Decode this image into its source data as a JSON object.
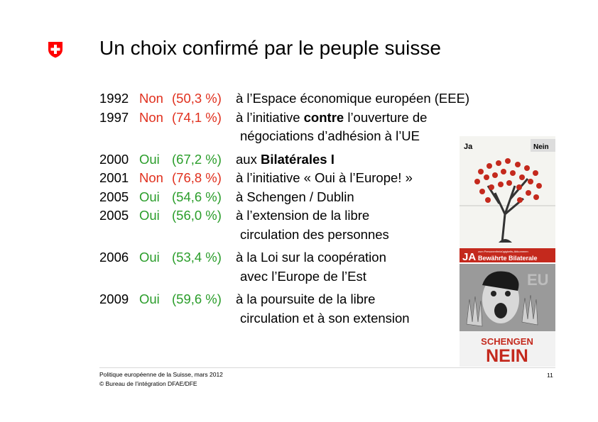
{
  "title": "Un choix confirmé par le peuple suisse",
  "colors": {
    "non": "#e0301e",
    "oui": "#2a9d2a",
    "swiss_red": "#ff0000"
  },
  "votes": [
    {
      "year": "1992",
      "vote": "Non",
      "pct": "(50,3 %)",
      "desc": "à l’Espace économique européen (EEE)"
    },
    {
      "year": "1997",
      "vote": "Non",
      "pct": "(74,1 %)",
      "desc_pre": "à l’initiative ",
      "desc_bold": "contre",
      "desc_post": " l’ouverture de",
      "desc2": "négociations d’adhésion à l’UE"
    },
    {
      "year": "2000",
      "vote": "Oui",
      "pct": "(67,2 %)",
      "desc_pre": "aux ",
      "desc_bold": "Bilatérales I"
    },
    {
      "year": "2001",
      "vote": "Non",
      "pct": "(76,8 %)",
      "desc": "à l’initiative « Oui à l’Europe! »"
    },
    {
      "year": "2005",
      "vote": "Oui",
      "pct": "(54,6 %)",
      "desc": "à Schengen / Dublin"
    },
    {
      "year": "2005",
      "vote": "Oui",
      "pct": "(56,0 %)",
      "desc": "à l’extension de la libre",
      "desc2": "circulation des personnes"
    },
    {
      "year": "2006",
      "vote": "Oui",
      "pct": "(53,4 %)",
      "desc": "à la Loi sur la coopération",
      "desc2": "avec l’Europe de l’Est"
    },
    {
      "year": "2009",
      "vote": "Oui",
      "pct": "(59,6 %)",
      "desc": "à la poursuite de la libre",
      "desc2": "circulation et à son extension"
    }
  ],
  "poster1": {
    "ja": "Ja",
    "nein": "Nein",
    "ja_big": "JA",
    "small": "zum Personenfreizügigkeits-Abkommen",
    "banner": "Bewährte Bilaterale"
  },
  "poster2": {
    "eu": "EU",
    "schengen": "SCHENGEN",
    "nein": "NEIN"
  },
  "footer": {
    "line1": "Politique européenne de la Suisse, mars 2012",
    "line2": "© Bureau de l’intégration  DFAE/DFE",
    "page": "11"
  }
}
